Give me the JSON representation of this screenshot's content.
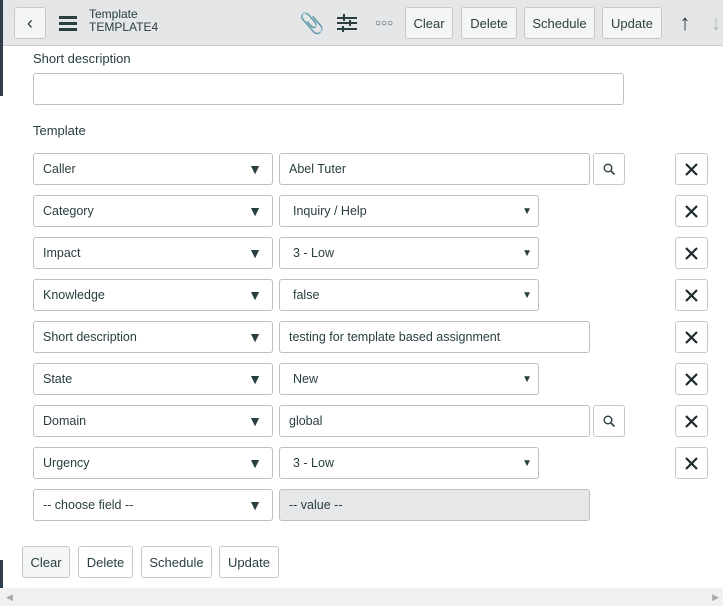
{
  "header": {
    "title": "Template",
    "subtitle": "TEMPLATE4",
    "buttons": [
      "Clear",
      "Delete",
      "Schedule",
      "Update"
    ]
  },
  "form": {
    "short_description_label": "Short description",
    "short_description_value": "",
    "template_label": "Template",
    "rows": [
      {
        "field": "Caller",
        "value": "Abel Tuter",
        "type": "reference"
      },
      {
        "field": "Category",
        "value": "Inquiry / Help",
        "type": "select"
      },
      {
        "field": "Impact",
        "value": "3 - Low",
        "type": "select"
      },
      {
        "field": "Knowledge",
        "value": "false",
        "type": "select"
      },
      {
        "field": "Short description",
        "value": "testing for template based assignment",
        "type": "text"
      },
      {
        "field": "State",
        "value": "New",
        "type": "select"
      },
      {
        "field": "Domain",
        "value": "global",
        "type": "reference"
      },
      {
        "field": "Urgency",
        "value": "3 - Low",
        "type": "select"
      }
    ],
    "new_row": {
      "field": "-- choose field --",
      "value": "-- value --"
    }
  },
  "footer": {
    "buttons": [
      "Clear",
      "Delete",
      "Schedule",
      "Update"
    ]
  }
}
